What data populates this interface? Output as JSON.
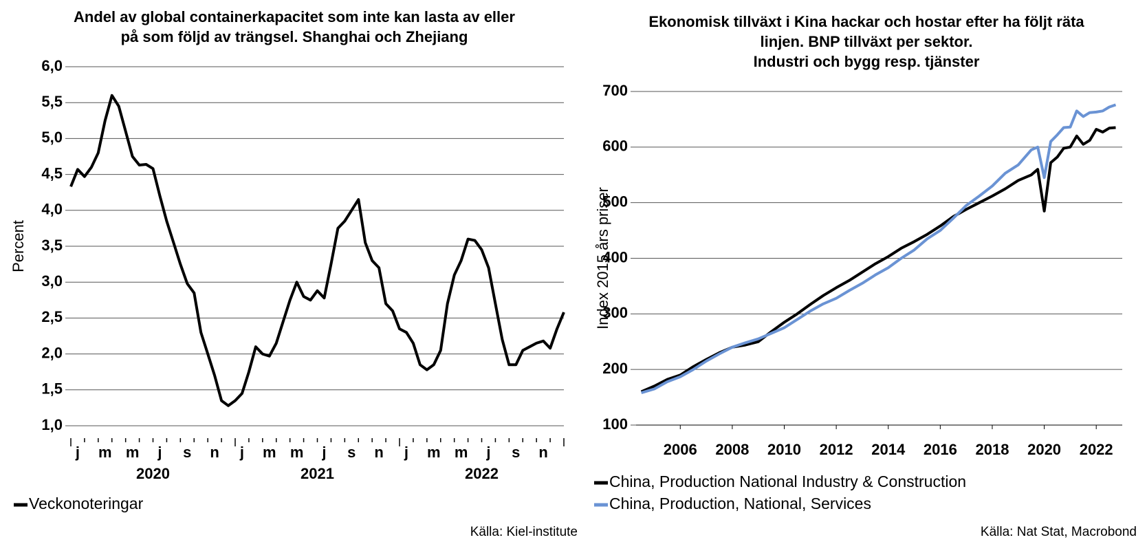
{
  "chart_data": [
    {
      "type": "line",
      "title": [
        "Andel av global containerkapacitet som inte kan lasta av eller",
        "på som följd av trängsel. Shanghai och Zhejiang"
      ],
      "y_label": "Percent",
      "month_labels": [
        "j",
        "m",
        "m",
        "j",
        "s",
        "n",
        "j",
        "m",
        "m",
        "j",
        "s",
        "n",
        "j",
        "m",
        "m",
        "j",
        "s",
        "n"
      ],
      "year_labels": [
        "2020",
        "2021",
        "2022"
      ],
      "ylim": [
        1,
        6
      ],
      "yticks": [
        {
          "value": 1,
          "label": "1,0"
        },
        {
          "value": 1.5,
          "label": "1,5"
        },
        {
          "value": 2,
          "label": "2,0"
        },
        {
          "value": 2.5,
          "label": "2,5"
        },
        {
          "value": 3,
          "label": "3,0"
        },
        {
          "value": 3.5,
          "label": "3,5"
        },
        {
          "value": 4,
          "label": "4,0"
        },
        {
          "value": 4.5,
          "label": "4,5"
        },
        {
          "value": 5,
          "label": "5,0"
        },
        {
          "value": 5.5,
          "label": "5,5"
        },
        {
          "value": 6,
          "label": "6,0"
        }
      ],
      "grid": true,
      "series": [
        {
          "name": "Veckonoteringar",
          "color": "#000000",
          "values": [
            4.33,
            4.57,
            4.47,
            4.6,
            4.8,
            5.25,
            5.6,
            5.45,
            5.1,
            4.75,
            4.63,
            4.64,
            4.58,
            4.2,
            3.85,
            3.55,
            3.25,
            2.98,
            2.85,
            2.3,
            2.0,
            1.7,
            1.35,
            1.28,
            1.35,
            1.45,
            1.75,
            2.1,
            2.0,
            1.97,
            2.15,
            2.45,
            2.75,
            3.0,
            2.8,
            2.75,
            2.88,
            2.78,
            3.25,
            3.75,
            3.85,
            4.0,
            4.15,
            3.55,
            3.3,
            3.2,
            2.7,
            2.6,
            2.35,
            2.3,
            2.15,
            1.85,
            1.78,
            1.85,
            2.05,
            2.7,
            3.1,
            3.3,
            3.6,
            3.58,
            3.45,
            3.2,
            2.7,
            2.2,
            1.85,
            1.85,
            2.05,
            2.1,
            2.15,
            2.18,
            2.08,
            2.35,
            2.58
          ]
        }
      ],
      "source": "Källa: Kiel-institute"
    },
    {
      "type": "line",
      "title": [
        "Ekonomisk tillväxt i Kina hackar och hostar efter ha följt räta",
        "linjen. BNP tillväxt per sektor.",
        "Industri och bygg resp. tjänster"
      ],
      "y_label": "Index 2015 års priser",
      "x": [
        2004.5,
        2005,
        2005.5,
        2006,
        2006.5,
        2007,
        2007.5,
        2008,
        2008.5,
        2009,
        2009.5,
        2010,
        2010.5,
        2011,
        2011.5,
        2012,
        2012.5,
        2013,
        2013.5,
        2014,
        2014.5,
        2015,
        2015.5,
        2016,
        2016.5,
        2017,
        2017.5,
        2018,
        2018.5,
        2019,
        2019.5,
        2019.75,
        2020,
        2020.25,
        2020.5,
        2020.75,
        2021,
        2021.25,
        2021.5,
        2021.75,
        2022,
        2022.25,
        2022.5,
        2022.75
      ],
      "xlim": [
        2004.3,
        2023
      ],
      "xticks": [
        2006,
        2008,
        2010,
        2012,
        2014,
        2016,
        2018,
        2020,
        2022
      ],
      "ylim": [
        100,
        700
      ],
      "yticks": [
        100,
        200,
        300,
        400,
        500,
        600,
        700
      ],
      "grid": true,
      "series": [
        {
          "name": "China, Production National Industry & Construction",
          "color": "#000000",
          "values": [
            160,
            170,
            182,
            190,
            205,
            218,
            230,
            240,
            244,
            250,
            268,
            285,
            300,
            317,
            333,
            347,
            360,
            375,
            390,
            403,
            418,
            430,
            443,
            458,
            475,
            488,
            500,
            512,
            525,
            540,
            550,
            560,
            485,
            572,
            582,
            598,
            600,
            620,
            605,
            612,
            632,
            627,
            634,
            635
          ]
        },
        {
          "name": "China, Production, National, Services",
          "color": "#6a93d4",
          "values": [
            158,
            165,
            178,
            187,
            200,
            215,
            228,
            240,
            248,
            255,
            265,
            275,
            290,
            305,
            318,
            328,
            342,
            355,
            370,
            383,
            400,
            415,
            435,
            450,
            472,
            495,
            512,
            530,
            553,
            568,
            595,
            600,
            545,
            610,
            622,
            635,
            636,
            665,
            655,
            662,
            663,
            665,
            672,
            676
          ]
        }
      ],
      "source": "Källa: Nat Stat, Macrobond"
    }
  ]
}
